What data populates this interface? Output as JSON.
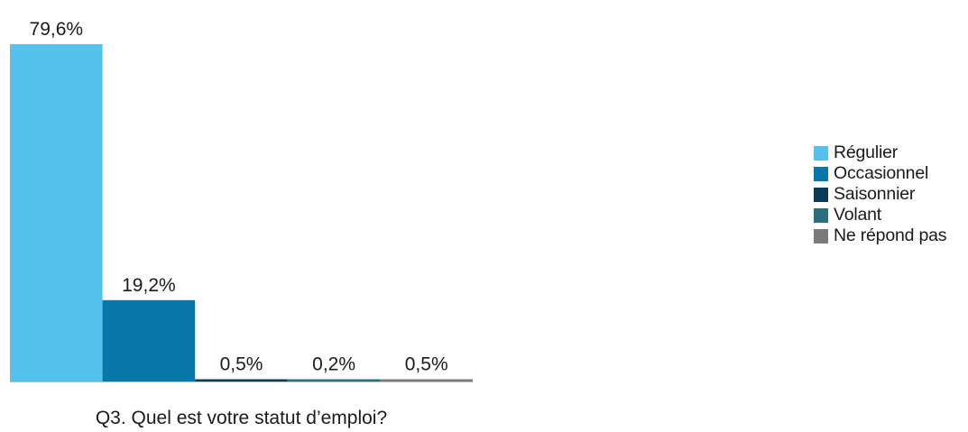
{
  "chart_data": {
    "type": "bar",
    "title": "",
    "xlabel": "Q3. Quel est votre statut d’emploi?",
    "ylabel": "",
    "ylim": [
      0,
      100
    ],
    "grid": false,
    "legend_position": "right",
    "categories": [
      "Régulier",
      "Occasionnel",
      "Saisonnier",
      "Volant",
      "Ne répond pas"
    ],
    "values": [
      79.6,
      19.2,
      0.5,
      0.2,
      0.5
    ],
    "value_labels": [
      "79,6%",
      "19,2%",
      "0,5%",
      "0,2%",
      "0,5%"
    ],
    "colors": [
      "#56c1ec",
      "#0776a8",
      "#0d3b57",
      "#2c6e7c",
      "#7a7a7a"
    ]
  }
}
